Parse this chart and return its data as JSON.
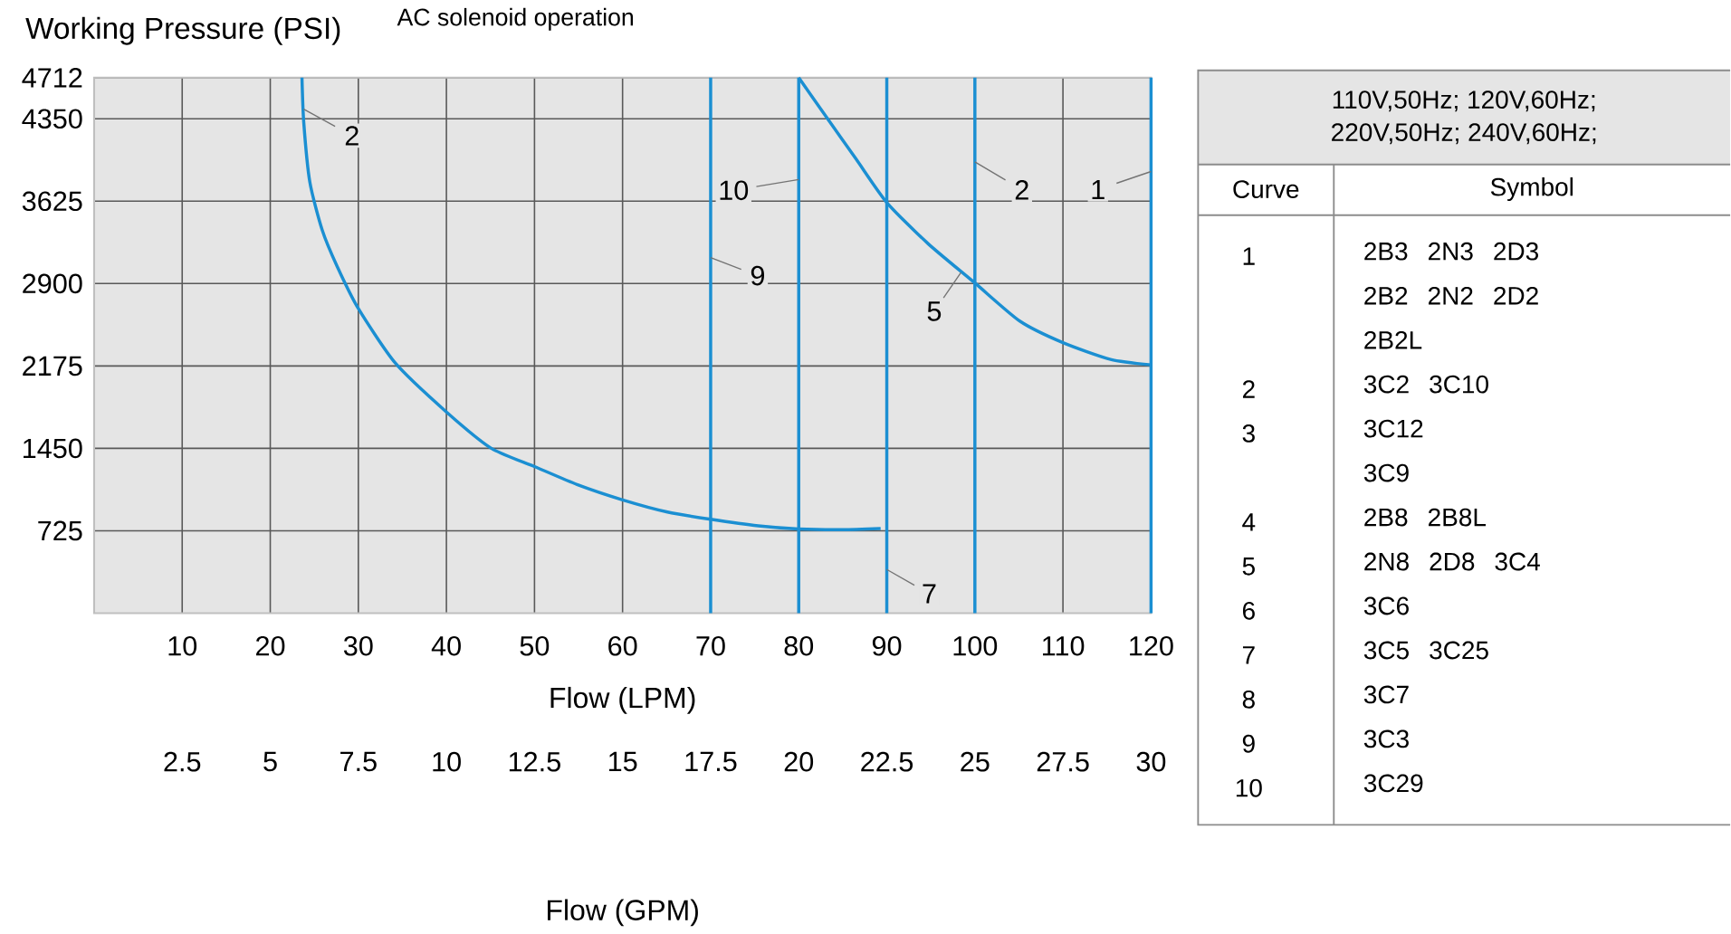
{
  "chart_data": {
    "type": "line",
    "title": "AC solenoid operation",
    "ylabel": "Working Pressure (PSI)",
    "xlabel": "Flow (LPM)",
    "x2label": "Flow (GPM)",
    "xlim": [
      0,
      120
    ],
    "xticks": [
      10,
      20,
      30,
      40,
      50,
      60,
      70,
      80,
      90,
      100,
      110,
      120
    ],
    "x2lim": [
      0,
      30
    ],
    "x2ticks": [
      2.5,
      5,
      7.5,
      10,
      12.5,
      15,
      17.5,
      20,
      22.5,
      25,
      27.5,
      30
    ],
    "ylim": [
      0,
      4712
    ],
    "yticks": [
      725,
      1450,
      2175,
      2900,
      3625,
      4350,
      4712
    ],
    "grid": true,
    "series": [
      {
        "name": "2",
        "color": "#1b8fd2",
        "x": [
          23.6,
          23.8,
          24.5,
          25.9,
          27.6,
          30,
          34.2,
          40,
          45.1,
          50,
          54.9,
          60,
          65.1,
          70,
          75.4,
          80,
          85,
          89.3
        ],
        "values": [
          4712,
          4320,
          3790,
          3370,
          3050,
          2680,
          2200,
          1770,
          1450,
          1290,
          1130,
          997,
          890,
          826,
          768,
          741,
          735,
          745
        ]
      },
      {
        "name": "5",
        "color": "#1b8fd2",
        "x": [
          80,
          83.1,
          86.5,
          90,
          94.7,
          100,
          105.1,
          110,
          115.4,
          120
        ],
        "values": [
          4712,
          4370,
          3997,
          3613,
          3250,
          2905,
          2570,
          2380,
          2233,
          2185
        ]
      },
      {
        "name": "9",
        "color": "#1b8fd2",
        "x": [
          70,
          70,
          70
        ],
        "values": [
          0,
          2356,
          4712
        ]
      },
      {
        "name": "10",
        "color": "#1b8fd2",
        "x": [
          80,
          80,
          80
        ],
        "values": [
          0,
          2356,
          4712
        ]
      },
      {
        "name": "7",
        "color": "#1b8fd2",
        "x": [
          90,
          90,
          90
        ],
        "values": [
          0,
          2356,
          4712
        ]
      },
      {
        "name": "2",
        "color": "#1b8fd2",
        "x": [
          100,
          100,
          100
        ],
        "values": [
          0,
          2356,
          4712
        ]
      },
      {
        "name": "1",
        "color": "#1b8fd2",
        "x": [
          120,
          120,
          120
        ],
        "values": [
          0,
          2356,
          4712
        ]
      }
    ],
    "annotations": [
      "110V,50Hz; 120V,60Hz;",
      "220V,50Hz; 240V,60Hz;",
      "Curve",
      "Symbol",
      "1",
      "2B3 2N3 2D3",
      "2B2 2N2 2D2",
      "2B2L",
      "2",
      "3C2 3C10",
      "3",
      "3C12",
      "3C9",
      "4",
      "2B8 2B8L",
      "5",
      "2N8 2D8 3C4",
      "6",
      "3C6",
      "7",
      "3C5 3C25",
      "8",
      "3C7",
      "9",
      "3C3",
      "10",
      "3C29"
    ]
  }
}
